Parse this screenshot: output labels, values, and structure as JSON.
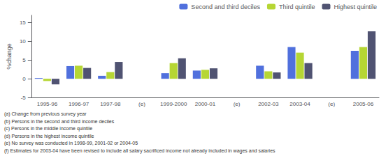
{
  "chart_data": {
    "type": "bar",
    "y_label": "%change",
    "categories": [
      "1995-96",
      "1996-97",
      "1997-98",
      "(e)",
      "1999-2000",
      "2000-01",
      "(e)",
      "2002-03",
      "2003-04",
      "(e)",
      "2005-06"
    ],
    "series": [
      {
        "name": "Second and third deciles",
        "values": [
          0.2,
          3.4,
          0.8,
          null,
          1.5,
          2.2,
          null,
          3.5,
          8.5,
          null,
          7.5
        ]
      },
      {
        "name": "Third quintile",
        "values": [
          -0.6,
          3.5,
          1.8,
          null,
          4.2,
          2.4,
          null,
          2.0,
          7.0,
          null,
          8.5
        ]
      },
      {
        "name": "Highest quintile",
        "values": [
          -1.5,
          2.9,
          4.5,
          null,
          5.5,
          2.8,
          null,
          1.7,
          4.2,
          null,
          12.7
        ]
      }
    ],
    "ylim": [
      -5,
      17
    ],
    "yticks": [
      -5,
      0,
      5,
      10,
      15
    ],
    "grid": false,
    "legend": "upper right",
    "annotations": [
      "(a) Change from previous survey year",
      "(b) Persons in the second and third income deciles",
      "(c) Persons in the middle income quintile",
      "(d) Persons in the highest income quintile",
      "(e) No survey was conducted in 1998-99, 2001-02 or 2004-05",
      "(f) Estimates for 2003-04 have been revised to include all salary sacrificed income not already included in wages and salaries"
    ]
  }
}
